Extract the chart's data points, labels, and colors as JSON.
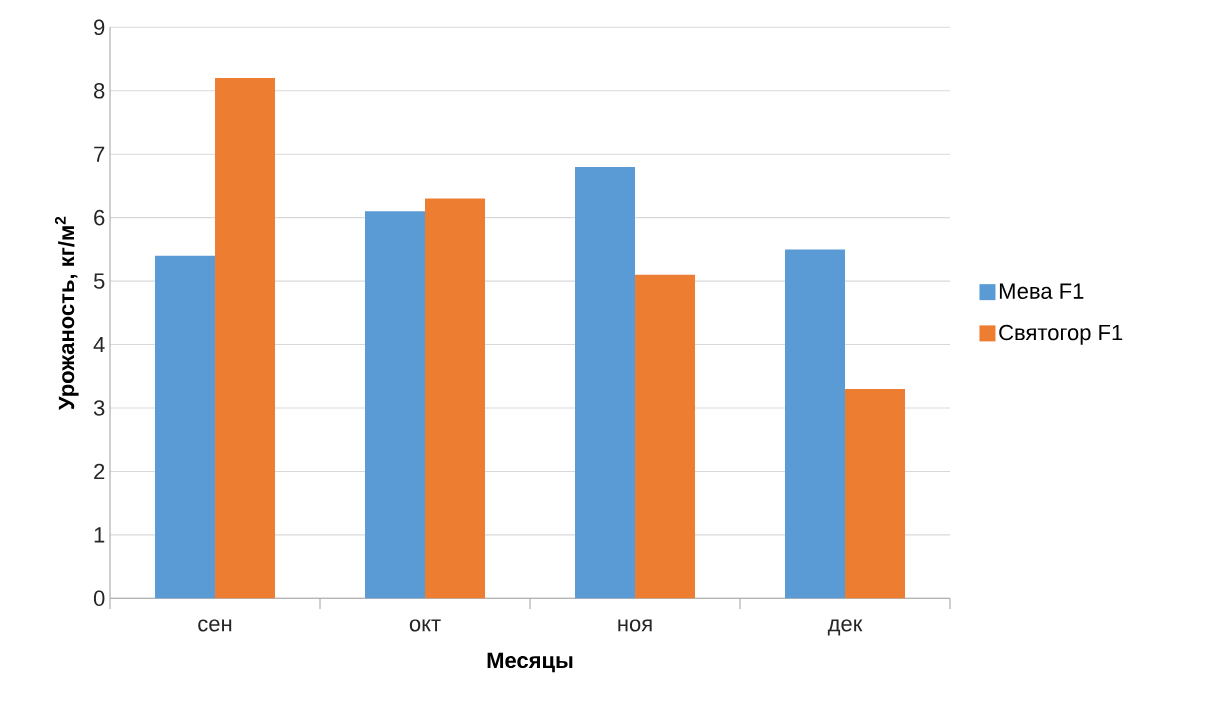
{
  "chart_data": {
    "type": "bar",
    "xlabel": "Месяцы",
    "ylabel": "Урожаность, кг/м$^{2}$",
    "categories": [
      "сен",
      "окт",
      "ноя",
      "дек"
    ],
    "series": [
      {
        "name": "Мева F1",
        "color": "#5b9bd5",
        "values": [
          5.4,
          6.1,
          6.8,
          5.5
        ]
      },
      {
        "name": "Святогор F1",
        "color": "#ed7d31",
        "values": [
          8.2,
          6.3,
          5.1,
          3.3
        ]
      }
    ],
    "ylim": [
      0,
      9
    ],
    "yticks": [
      0,
      1,
      2,
      3,
      4,
      5,
      6,
      7,
      8,
      9
    ],
    "grid": "y",
    "legend": "right"
  }
}
